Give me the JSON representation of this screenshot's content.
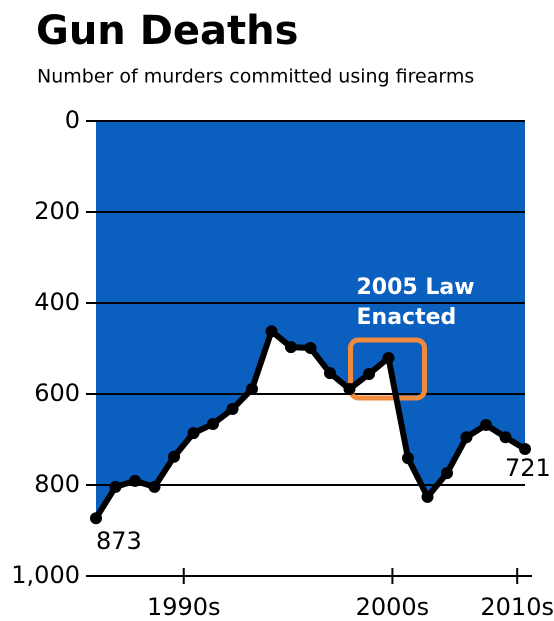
{
  "chart_data": {
    "type": "area-line",
    "title": "Gun Deaths",
    "subtitle": "Number of murders committed using firearms",
    "x": [
      1990,
      1991,
      1992,
      1993,
      1994,
      1995,
      1996,
      1997,
      1998,
      1999,
      2000,
      2001,
      2002,
      2003,
      2004,
      2005,
      2006,
      2007,
      2008,
      2009,
      2010,
      2011,
      2012
    ],
    "values": [
      873,
      804,
      791,
      804,
      738,
      686,
      666,
      633,
      589,
      462,
      497,
      499,
      554,
      589,
      556,
      521,
      741,
      826,
      774,
      695,
      668,
      695,
      721
    ],
    "color": "#000000",
    "fill_color": "#0b5fbf",
    "xlim": [
      1990,
      2012
    ],
    "xticks": [
      {
        "value": 1994.5,
        "label": "1990s"
      },
      {
        "value": 2005.2,
        "label": "2000s"
      },
      {
        "value": 2011.6,
        "label": "2010s"
      }
    ],
    "ylim": [
      0,
      1000
    ],
    "inverted": true,
    "yticks": [
      0,
      200,
      400,
      600,
      800,
      {
        "value": 1000,
        "label": "1,000"
      }
    ],
    "grid": true,
    "annotation": {
      "x": 2005,
      "lines": [
        "2005 Law",
        "Enacted"
      ],
      "color": "#f08a3c"
    }
  }
}
